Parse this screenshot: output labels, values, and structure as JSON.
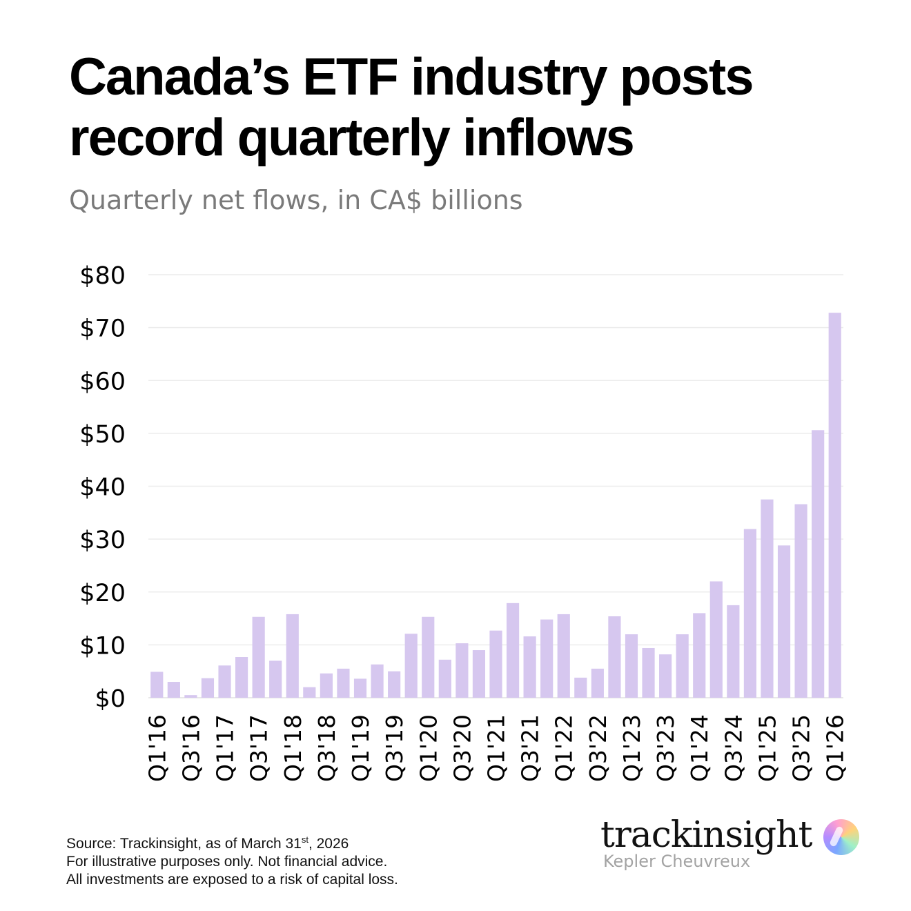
{
  "title": "Canada’s ETF industry posts record quarterly inflows",
  "subtitle": "Quarterly net flows, in CA$ billions",
  "footer": {
    "line1_pre": "Source: Trackinsight, as of March 31",
    "line1_sup": "st",
    "line1_post": ", 2026",
    "line2": "For illustrative purposes only. Not financial advice.",
    "line3": "All investments are exposed to a risk of capital loss."
  },
  "brand": {
    "name": "trackinsight",
    "sub": "Kepler Cheuvreux"
  },
  "colors": {
    "bar": "#d6c7ef",
    "grid": "#ececec",
    "axis": "#e0e0e0"
  },
  "chart_data": {
    "type": "bar",
    "categories": [
      "Q1'16",
      "Q2'16",
      "Q3'16",
      "Q4'16",
      "Q1'17",
      "Q2'17",
      "Q3'17",
      "Q4'17",
      "Q1'18",
      "Q2'18",
      "Q3'18",
      "Q4'18",
      "Q1'19",
      "Q2'19",
      "Q3'19",
      "Q4'19",
      "Q1'20",
      "Q2'20",
      "Q3'20",
      "Q4'20",
      "Q1'21",
      "Q2'21",
      "Q3'21",
      "Q4'21",
      "Q1'22",
      "Q2'22",
      "Q3'22",
      "Q4'22",
      "Q1'23",
      "Q2'23",
      "Q3'23",
      "Q4'23",
      "Q1'24",
      "Q2'24",
      "Q3'24",
      "Q4'24",
      "Q1'25",
      "Q2'25",
      "Q3'25",
      "Q4'25",
      "Q1'26"
    ],
    "tick_labels": [
      "Q1'16",
      "",
      "Q3'16",
      "",
      "Q1'17",
      "",
      "Q3'17",
      "",
      "Q1'18",
      "",
      "Q3'18",
      "",
      "Q1'19",
      "",
      "Q3'19",
      "",
      "Q1'20",
      "",
      "Q3'20",
      "",
      "Q1'21",
      "",
      "Q3'21",
      "",
      "Q1'22",
      "",
      "Q3'22",
      "",
      "Q1'23",
      "",
      "Q3'23",
      "",
      "Q1'24",
      "",
      "Q3'24",
      "",
      "Q1'25",
      "",
      "Q3'25",
      "",
      "Q1'26"
    ],
    "values": [
      4.9,
      3.0,
      0.5,
      3.7,
      6.1,
      7.7,
      15.3,
      7.0,
      15.8,
      2.0,
      4.6,
      5.5,
      3.6,
      6.3,
      5.0,
      12.1,
      15.3,
      7.2,
      10.3,
      9.0,
      12.7,
      17.9,
      11.6,
      14.8,
      15.8,
      3.8,
      5.5,
      15.4,
      12.0,
      9.4,
      8.2,
      12.0,
      16.0,
      22.0,
      17.5,
      31.9,
      37.5,
      28.8,
      36.6,
      50.6,
      72.8
    ],
    "ylim": [
      0,
      80
    ],
    "yticks": [
      0,
      10,
      20,
      30,
      40,
      50,
      60,
      70,
      80
    ],
    "ytick_labels": [
      "$0",
      "$10",
      "$20",
      "$30",
      "$40",
      "$50",
      "$60",
      "$70",
      "$80"
    ],
    "grid": true,
    "legend": "none"
  }
}
